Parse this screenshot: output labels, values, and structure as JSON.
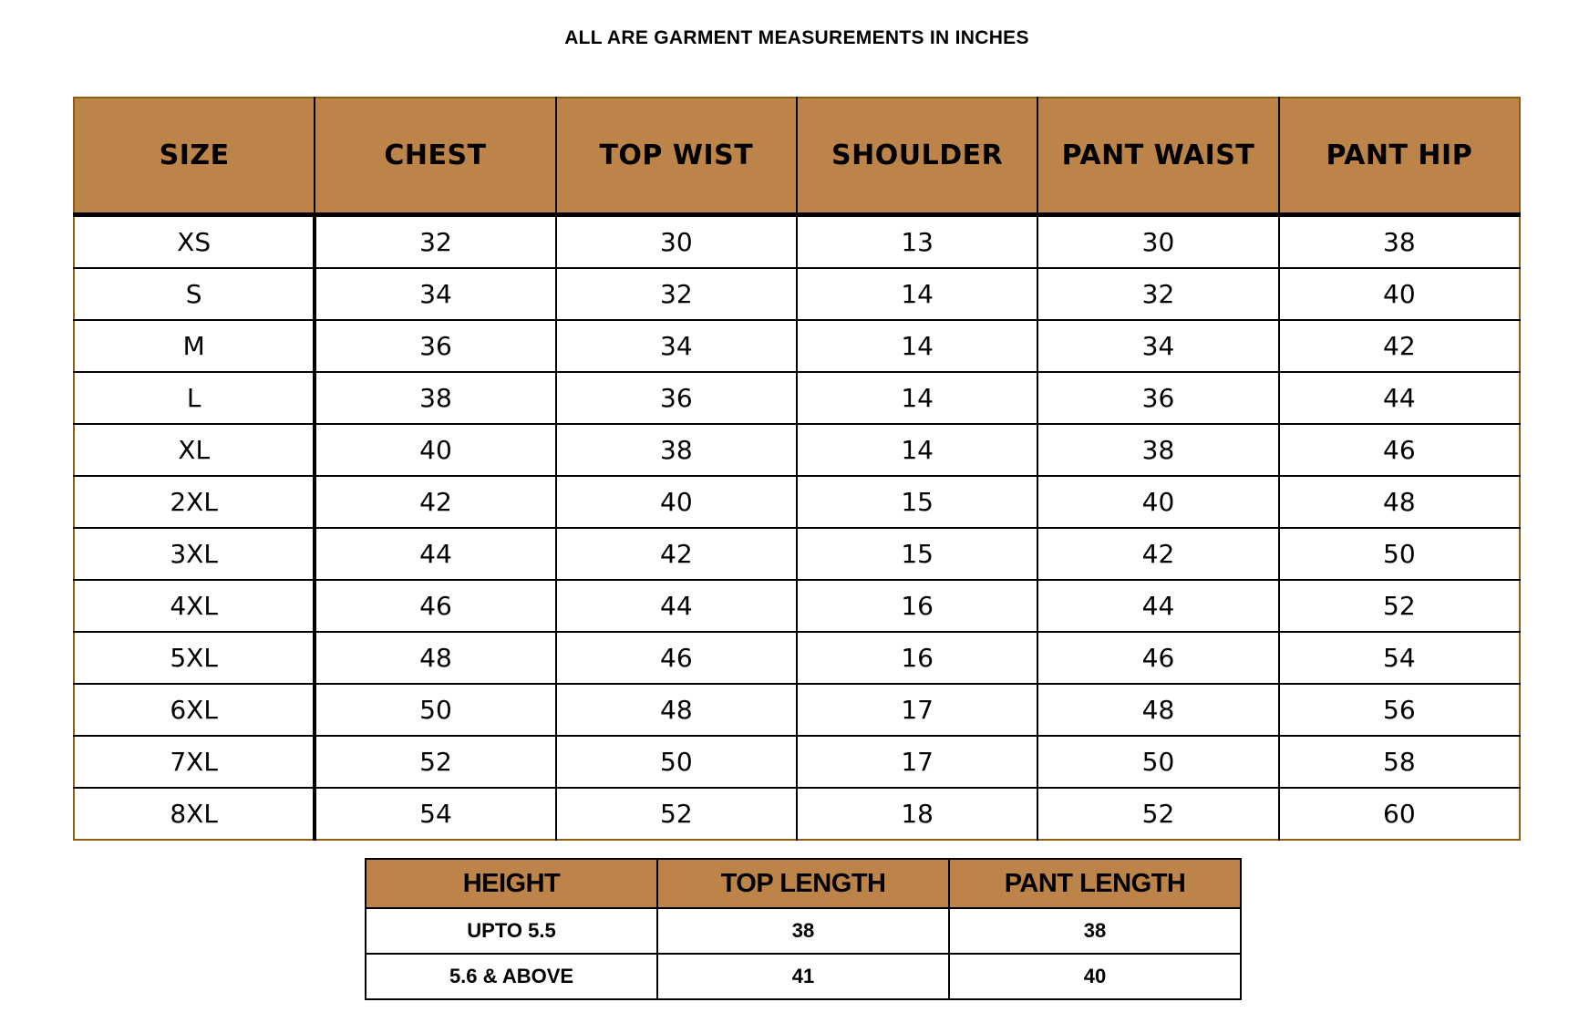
{
  "page_title": "ALL ARE GARMENT MEASUREMENTS IN INCHES",
  "units": "inches",
  "colors": {
    "header_bg": "#bc8448",
    "grid_line": "#000000",
    "outer_border": "#8f5e10",
    "text": "#000000",
    "background": "#ffffff"
  },
  "chart_data": [
    {
      "type": "table",
      "title": "ALL ARE GARMENT MEASUREMENTS IN INCHES",
      "columns": [
        "SIZE",
        "CHEST",
        "TOP WIST",
        "SHOULDER",
        "PANT WAIST",
        "PANT HIP"
      ],
      "rows": [
        [
          "XS",
          "32",
          "30",
          "13",
          "30",
          "38"
        ],
        [
          "S",
          "34",
          "32",
          "14",
          "32",
          "40"
        ],
        [
          "M",
          "36",
          "34",
          "14",
          "34",
          "42"
        ],
        [
          "L",
          "38",
          "36",
          "14",
          "36",
          "44"
        ],
        [
          "XL",
          "40",
          "38",
          "14",
          "38",
          "46"
        ],
        [
          "2XL",
          "42",
          "40",
          "15",
          "40",
          "48"
        ],
        [
          "3XL",
          "44",
          "42",
          "15",
          "42",
          "50"
        ],
        [
          "4XL",
          "46",
          "44",
          "16",
          "44",
          "52"
        ],
        [
          "5XL",
          "48",
          "46",
          "16",
          "46",
          "54"
        ],
        [
          "6XL",
          "50",
          "48",
          "17",
          "48",
          "56"
        ],
        [
          "7XL",
          "52",
          "50",
          "17",
          "50",
          "58"
        ],
        [
          "8XL",
          "54",
          "52",
          "18",
          "52",
          "60"
        ]
      ]
    },
    {
      "type": "table",
      "title": "",
      "columns": [
        "HEIGHT",
        "TOP LENGTH",
        "PANT LENGTH"
      ],
      "rows": [
        [
          "UPTO 5.5",
          "38",
          "38"
        ],
        [
          "5.6 & ABOVE",
          "41",
          "40"
        ]
      ]
    }
  ]
}
